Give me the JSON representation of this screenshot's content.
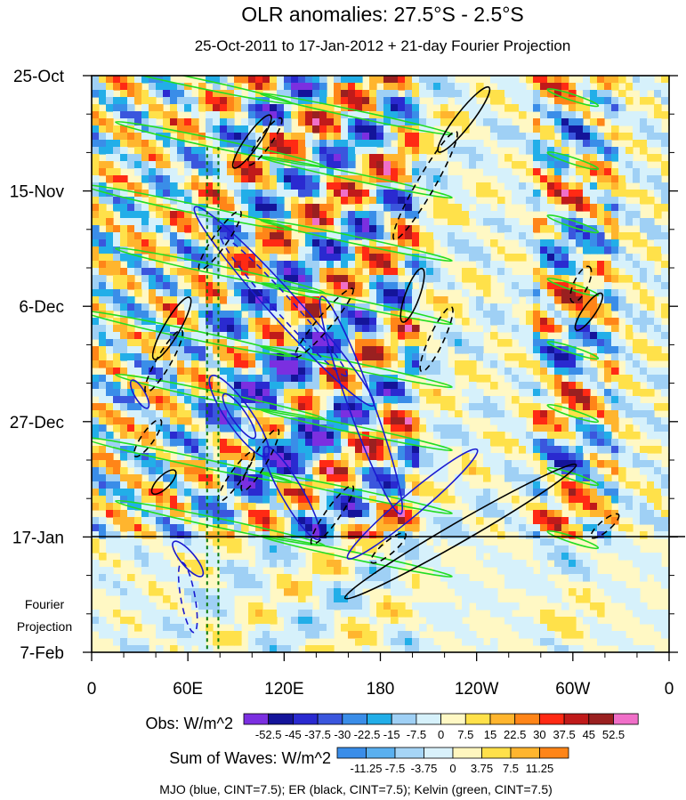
{
  "chart_data": {
    "type": "heatmap",
    "title": "OLR anomalies: 27.5°S - 2.5°S",
    "subtitle": "25-Oct-2011 to 17-Jan-2012 + 21-day Fourier Projection",
    "x_axis": {
      "ticks": [
        "0",
        "60E",
        "120E",
        "180",
        "120W",
        "60W",
        "0"
      ],
      "tick_values_deg_e": [
        0,
        60,
        120,
        180,
        240,
        300,
        360
      ],
      "range_deg_e": [
        0,
        360
      ]
    },
    "y_axis": {
      "ticks": [
        "25-Oct",
        "15-Nov",
        "6-Dec",
        "27-Dec",
        "17-Jan",
        "7-Feb"
      ],
      "tick_days_since_start": [
        0,
        21,
        42,
        63,
        84,
        105
      ],
      "range_days": [
        0,
        105
      ],
      "reversed": true
    },
    "observation_end_label": "17-Jan",
    "projection_label": [
      "Fourier",
      "Projection"
    ],
    "obs_colorbar": {
      "label": "Obs: W/m^2",
      "levels": [
        "-52.5",
        "-45",
        "-37.5",
        "-30",
        "-22.5",
        "-15",
        "-7.5",
        "0",
        "7.5",
        "15",
        "22.5",
        "30",
        "37.5",
        "45",
        "52.5"
      ],
      "colors": [
        "#7b2fe0",
        "#14149a",
        "#2a2ad0",
        "#3a56dd",
        "#3a8de8",
        "#22aee8",
        "#9fd0f5",
        "#d6f1fb",
        "#fff8c4",
        "#ffe14a",
        "#ffb52e",
        "#ff8518",
        "#ff2a14",
        "#c01a1a",
        "#9a2020",
        "#f06fc8"
      ]
    },
    "waves_colorbar": {
      "label": "Sum of Waves: W/m^2",
      "levels": [
        "-11.25",
        "-7.5",
        "-3.75",
        "0",
        "3.75",
        "7.5",
        "11.25"
      ],
      "colors": [
        "#3a8de8",
        "#5ab0ef",
        "#a6d5f6",
        "#d9f1fb",
        "#fff6bf",
        "#ffe04a",
        "#ffb52e",
        "#ff8518"
      ]
    },
    "contour_note": "MJO (blue, CINT=7.5); ER (black, CINT=7.5); Kelvin (green, CINT=7.5)",
    "series": [
      {
        "name": "MJO",
        "color": "#1a1ad0"
      },
      {
        "name": "ER",
        "color": "#000000"
      },
      {
        "name": "Kelvin",
        "color": "#22dd22"
      }
    ],
    "reference_longitudes_deg_e": [
      72,
      79
    ],
    "reference_line_color": "#0a7a0a",
    "grid": false,
    "legend_position": "bottom"
  }
}
